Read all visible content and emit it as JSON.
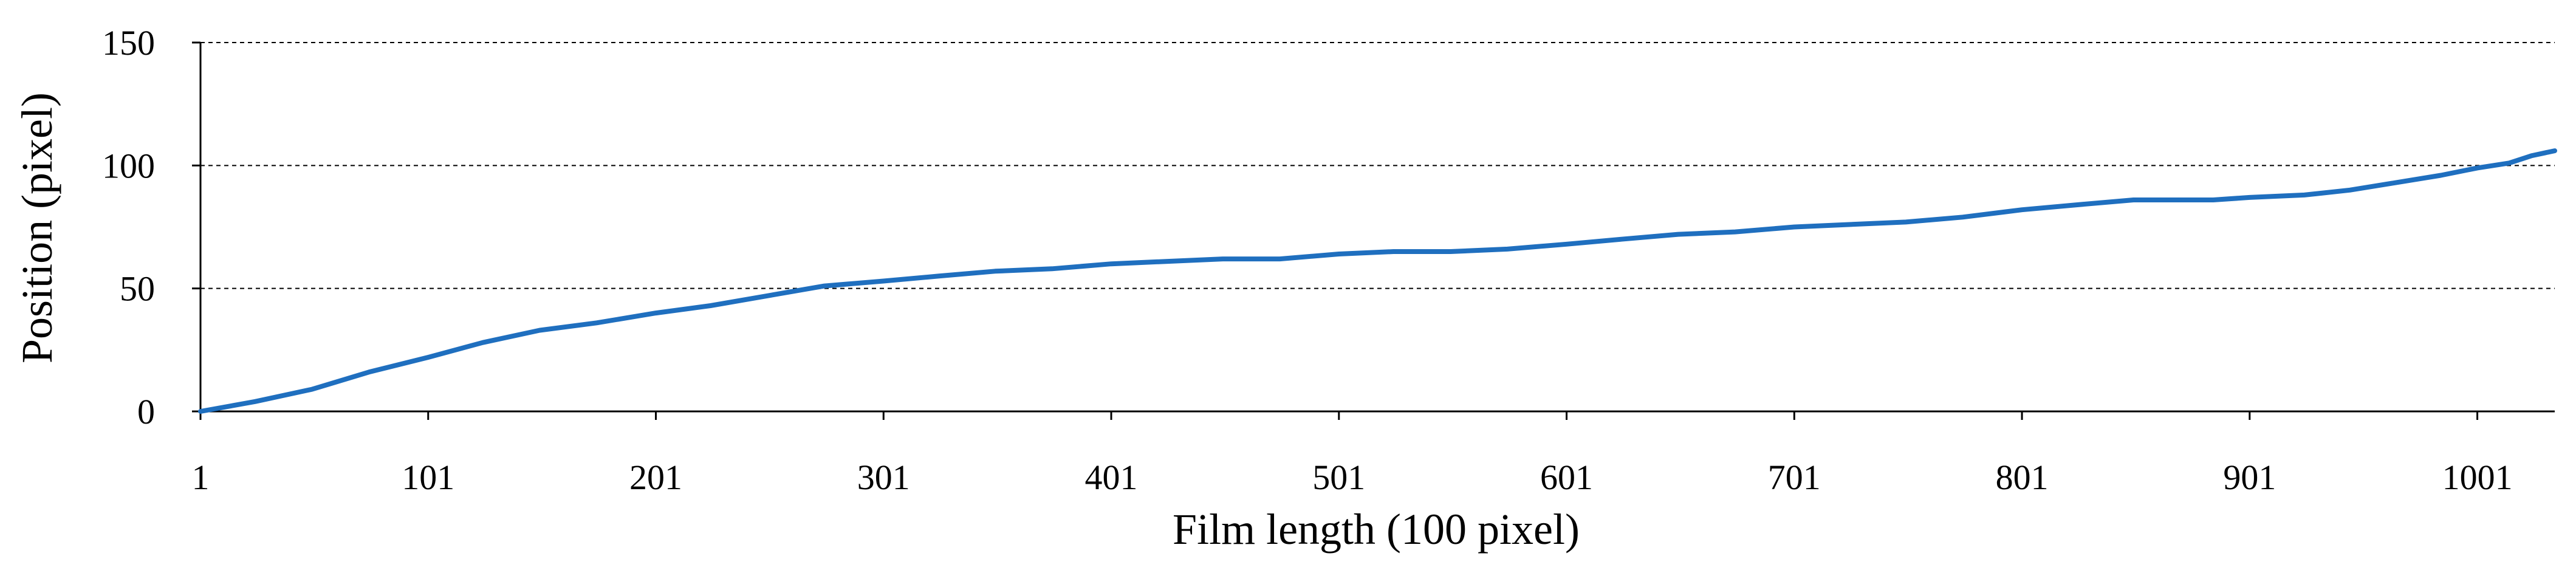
{
  "chart_data": {
    "type": "line",
    "title": "",
    "xlabel": "Film length (100 pixel)",
    "ylabel": "Position (pixel)",
    "xlim": [
      1,
      1035
    ],
    "ylim": [
      0,
      150
    ],
    "xticks": [
      1,
      101,
      201,
      301,
      401,
      501,
      601,
      701,
      801,
      901,
      1001
    ],
    "yticks": [
      0,
      50,
      100,
      150
    ],
    "grid": "horizontal dashed",
    "series": [
      {
        "color": "#1f6fbf",
        "points": [
          [
            1,
            0
          ],
          [
            25,
            4
          ],
          [
            50,
            9
          ],
          [
            75,
            16
          ],
          [
            101,
            22
          ],
          [
            125,
            28
          ],
          [
            150,
            33
          ],
          [
            175,
            36
          ],
          [
            201,
            40
          ],
          [
            225,
            43
          ],
          [
            250,
            47
          ],
          [
            275,
            51
          ],
          [
            301,
            53
          ],
          [
            325,
            55
          ],
          [
            350,
            57
          ],
          [
            375,
            58
          ],
          [
            401,
            60
          ],
          [
            425,
            61
          ],
          [
            450,
            62
          ],
          [
            475,
            62
          ],
          [
            501,
            64
          ],
          [
            525,
            65
          ],
          [
            550,
            65
          ],
          [
            575,
            66
          ],
          [
            601,
            68
          ],
          [
            625,
            70
          ],
          [
            650,
            72
          ],
          [
            675,
            73
          ],
          [
            701,
            75
          ],
          [
            725,
            76
          ],
          [
            750,
            77
          ],
          [
            775,
            79
          ],
          [
            801,
            82
          ],
          [
            825,
            84
          ],
          [
            850,
            86
          ],
          [
            870,
            86
          ],
          [
            885,
            86
          ],
          [
            901,
            87
          ],
          [
            925,
            88
          ],
          [
            945,
            90
          ],
          [
            965,
            93
          ],
          [
            985,
            96
          ],
          [
            1001,
            99
          ],
          [
            1015,
            101
          ],
          [
            1025,
            104
          ],
          [
            1035,
            106
          ]
        ]
      }
    ]
  }
}
